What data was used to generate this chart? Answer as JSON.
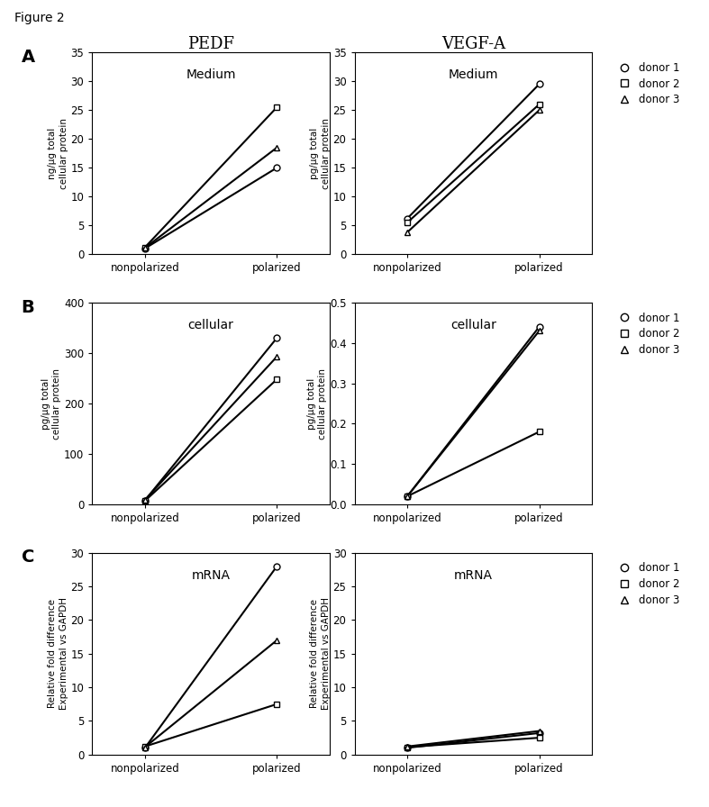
{
  "figure_title": "Figure 2",
  "col_titles": [
    "PEDF",
    "VEGF-A"
  ],
  "row_labels": [
    "A",
    "B",
    "C"
  ],
  "subplot_titles": [
    [
      "Medium",
      "Medium"
    ],
    [
      "cellular",
      "cellular"
    ],
    [
      "mRNA",
      "mRNA"
    ]
  ],
  "ylabels": [
    [
      "ng/μg total\ncellular protein",
      "pg/μg total\ncellular protein"
    ],
    [
      "pg/μg total\ncellular protein",
      "pg/μg total\ncellular protein"
    ],
    [
      "Relative fold difference\nExperimental vs GAPDH",
      "Relative fold difference\nExperimental vs GAPDH"
    ]
  ],
  "ylims": [
    [
      [
        0,
        35
      ],
      [
        0,
        35
      ]
    ],
    [
      [
        0,
        400
      ],
      [
        0,
        0.5
      ]
    ],
    [
      [
        0,
        30
      ],
      [
        0,
        30
      ]
    ]
  ],
  "yticks": [
    [
      [
        0,
        5,
        10,
        15,
        20,
        25,
        30,
        35
      ],
      [
        0,
        5,
        10,
        15,
        20,
        25,
        30,
        35
      ]
    ],
    [
      [
        0,
        100,
        200,
        300,
        400
      ],
      [
        0,
        0.1,
        0.2,
        0.3,
        0.4,
        0.5
      ]
    ],
    [
      [
        0,
        5,
        10,
        15,
        20,
        25,
        30
      ],
      [
        0,
        5,
        10,
        15,
        20,
        25,
        30
      ]
    ]
  ],
  "data": {
    "A_PEDF": {
      "donor1": [
        1.0,
        15.0
      ],
      "donor2": [
        1.2,
        25.5
      ],
      "donor3": [
        1.1,
        18.5
      ]
    },
    "A_VEGF": {
      "donor1": [
        6.2,
        29.5
      ],
      "donor2": [
        5.5,
        26.0
      ],
      "donor3": [
        3.8,
        25.0
      ]
    },
    "B_PEDF": {
      "donor1": [
        8,
        330
      ],
      "donor2": [
        7,
        248
      ],
      "donor3": [
        9,
        293
      ]
    },
    "B_VEGF": {
      "donor1": [
        0.02,
        0.44
      ],
      "donor2": [
        0.02,
        0.18
      ],
      "donor3": [
        0.02,
        0.43
      ]
    },
    "C_PEDF": {
      "donor1": [
        1.0,
        28.0
      ],
      "donor2": [
        1.2,
        7.5
      ],
      "donor3": [
        1.1,
        17.0
      ]
    },
    "C_VEGF": {
      "donor1": [
        1.0,
        3.2
      ],
      "donor2": [
        1.1,
        2.5
      ],
      "donor3": [
        1.2,
        3.5
      ]
    }
  },
  "donors": [
    "donor1",
    "donor2",
    "donor3"
  ],
  "donor_labels": [
    "donor 1",
    "donor 2",
    "donor 3"
  ],
  "markers": [
    "o",
    "s",
    "^"
  ],
  "x_labels": [
    "nonpolarized",
    "polarized"
  ],
  "x_positions": [
    0,
    1
  ],
  "line_color": "black",
  "line_width": 1.5,
  "marker_size": 5,
  "marker_facecolor": "white"
}
